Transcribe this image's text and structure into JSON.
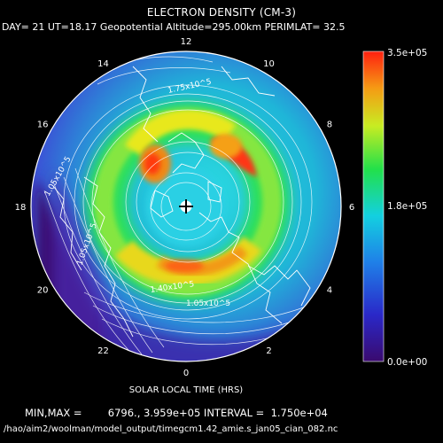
{
  "header": {
    "title": "ELECTRON DENSITY (CM-3)",
    "subtitle": "DAY= 21 UT=18.17 Geopotential Altitude=295.00km PERIMLAT= 32.5"
  },
  "footer": {
    "xlabel": "SOLAR LOCAL TIME (HRS)",
    "stats": "MIN,MAX =        6796., 3.959e+05 INTERVAL =  1.750e+04",
    "path": "/hao/aim2/woolman/model_output/timegcm1.42_amie.s_jan05_cian_082.nc"
  },
  "chart_data": {
    "type": "polar-contour",
    "title": "ELECTRON DENSITY (CM-3)",
    "min": 6796,
    "max": 395900,
    "interval": 17500,
    "colorbar": {
      "min_label": "0.0e+00",
      "mid_label": "1.8e+05",
      "max_label": "3.5e+05",
      "range": [
        0,
        350000
      ]
    },
    "local_time_labels": [
      "12",
      "10",
      "8",
      "6",
      "4",
      "2",
      "0",
      "22",
      "20",
      "18",
      "16",
      "14"
    ],
    "contour_labels": [
      "1.75x10^5",
      "1.05x10^5",
      "1.40x10^5",
      "1.05x10^5",
      "1.05x10^5"
    ],
    "features": [
      {
        "label": "peak-dusk",
        "local_time": 15.0,
        "colat_deg": 26,
        "value": 350000
      },
      {
        "label": "peak-dawn",
        "local_time": 8.3,
        "colat_deg": 21,
        "value": 395900
      },
      {
        "label": "ring-south",
        "local_time": 3.0,
        "colat_deg": 22,
        "value": 250000
      },
      {
        "label": "trough-night",
        "local_time": 21.0,
        "colat_deg": 46,
        "value": 6796
      }
    ]
  }
}
